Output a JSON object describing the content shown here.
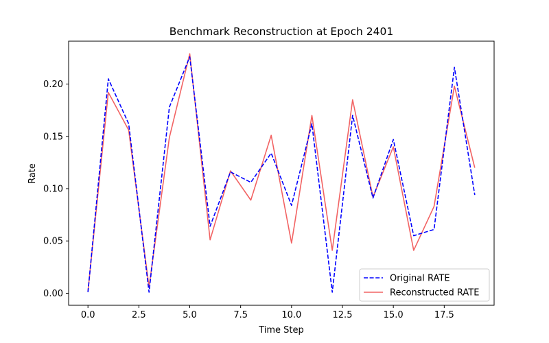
{
  "chart_data": {
    "type": "line",
    "title": "Benchmark Reconstruction at Epoch 2401",
    "xlabel": "Time Step",
    "ylabel": "Rate",
    "xlim": [
      -0.95,
      19.95
    ],
    "ylim": [
      -0.0115,
      0.241
    ],
    "xticks": [
      0.0,
      2.5,
      5.0,
      7.5,
      10.0,
      12.5,
      15.0,
      17.5
    ],
    "xtick_labels": [
      "0.0",
      "2.5",
      "5.0",
      "7.5",
      "10.0",
      "12.5",
      "15.0",
      "17.5"
    ],
    "yticks": [
      0.0,
      0.05,
      0.1,
      0.15,
      0.2
    ],
    "ytick_labels": [
      "0.00",
      "0.05",
      "0.10",
      "0.15",
      "0.20"
    ],
    "grid": false,
    "legend_position": "lower-right",
    "x": [
      0,
      1,
      2,
      3,
      4,
      5,
      6,
      7,
      8,
      9,
      10,
      11,
      12,
      13,
      14,
      15,
      16,
      17,
      18,
      19
    ],
    "series": [
      {
        "name": "Original RATE",
        "color": "#0000ff",
        "style": "dashed",
        "values": [
          0.001,
          0.205,
          0.162,
          0.001,
          0.178,
          0.226,
          0.064,
          0.116,
          0.106,
          0.134,
          0.084,
          0.162,
          0.001,
          0.17,
          0.091,
          0.147,
          0.055,
          0.061,
          0.216,
          0.094
        ]
      },
      {
        "name": "Reconstructed RATE",
        "color": "#f04848",
        "style": "solid",
        "values": [
          0.002,
          0.192,
          0.156,
          0.006,
          0.149,
          0.229,
          0.051,
          0.117,
          0.089,
          0.151,
          0.048,
          0.17,
          0.041,
          0.185,
          0.092,
          0.14,
          0.041,
          0.083,
          0.198,
          0.12
        ]
      }
    ]
  }
}
